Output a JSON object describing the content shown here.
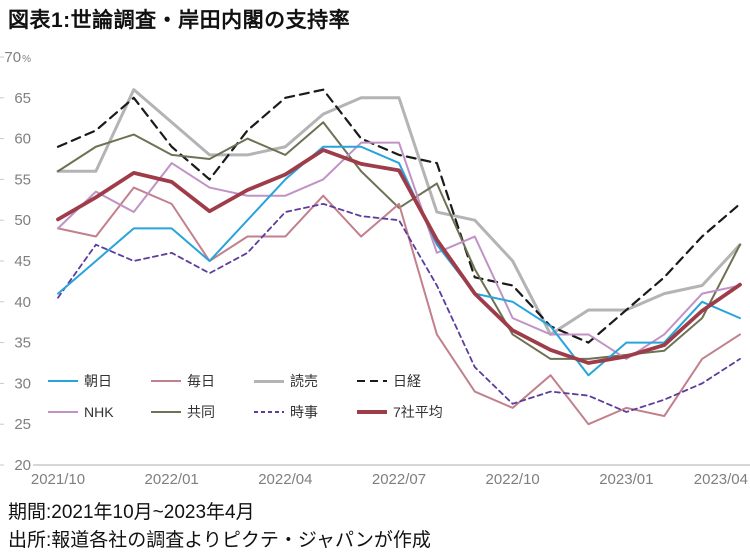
{
  "page": {
    "title": "図表1:世論調査・岸田内閣の支持率",
    "period_note": "期間:2021年10月~2023年4月",
    "source_note": "出所:報道各社の調査よりピクテ・ジャパンが作成"
  },
  "chart_data": {
    "type": "line",
    "title": "図表1:世論調査・岸田内閣の支持率",
    "unit_suffix": "%",
    "ylim": [
      20,
      70
    ],
    "ystep": 5,
    "grid": false,
    "legend_position": "inside-lower-left",
    "x": [
      "2021/10",
      "2021/11",
      "2021/12",
      "2022/01",
      "2022/02",
      "2022/03",
      "2022/04",
      "2022/05",
      "2022/06",
      "2022/07",
      "2022/08",
      "2022/09",
      "2022/10",
      "2022/11",
      "2022/12",
      "2023/01",
      "2023/02",
      "2023/03",
      "2023/04"
    ],
    "x_tick_labels": [
      "2021/10",
      "2022/01",
      "2022/04",
      "2022/07",
      "2022/10",
      "2023/01",
      "2023/04"
    ],
    "x_tick_indices": [
      0,
      3,
      6,
      9,
      12,
      15,
      18
    ],
    "series": [
      {
        "key": "asahi",
        "name": "朝日",
        "color": "#27A4DB",
        "style": "solid",
        "width": 2,
        "values": [
          41,
          45,
          49,
          49,
          45,
          50,
          55,
          59,
          59,
          57,
          47,
          41,
          40,
          37,
          31,
          35,
          35,
          40,
          38
        ]
      },
      {
        "key": "mainichi",
        "name": "毎日",
        "color": "#C2808C",
        "style": "solid",
        "width": 2,
        "values": [
          49,
          48,
          54,
          52,
          45,
          48,
          48,
          53,
          48,
          52,
          36,
          29,
          27,
          31,
          25,
          27,
          26,
          33,
          36
        ]
      },
      {
        "key": "yomiuri",
        "name": "読売",
        "color": "#B5B3B4",
        "style": "solid",
        "width": 3,
        "values": [
          56,
          56,
          66,
          62,
          58,
          58,
          59,
          63,
          65,
          65,
          51,
          50,
          45,
          36,
          39,
          39,
          41,
          42,
          47
        ]
      },
      {
        "key": "nikkei",
        "name": "日経",
        "color": "#1A1A1A",
        "style": "dashed",
        "dash": "9 6",
        "width": 2.2,
        "values": [
          59,
          61,
          65,
          59,
          55,
          61,
          65,
          66,
          60,
          58,
          57,
          43,
          42,
          37,
          35,
          39,
          43,
          48,
          52
        ]
      },
      {
        "key": "nhk",
        "name": "NHK",
        "color": "#C192C5",
        "style": "solid",
        "width": 2,
        "values": [
          49,
          53.5,
          51,
          57,
          54,
          53,
          53,
          55,
          59.5,
          59.5,
          46,
          48,
          38,
          36,
          36,
          33,
          36,
          41,
          42
        ]
      },
      {
        "key": "kyodo",
        "name": "共同",
        "color": "#6E7154",
        "style": "solid",
        "width": 2,
        "values": [
          56,
          59,
          60.5,
          58,
          57.5,
          60,
          58,
          62,
          56,
          51.5,
          54.5,
          44,
          36,
          33,
          33,
          33.5,
          34,
          38,
          47
        ]
      },
      {
        "key": "jiji",
        "name": "時事",
        "color": "#5C3D9C",
        "style": "dashed",
        "dash": "5 4",
        "width": 1.8,
        "values": [
          40.5,
          47,
          45,
          46,
          43.5,
          46,
          51,
          52,
          50.5,
          50,
          42,
          32,
          27.5,
          29,
          28.5,
          26.5,
          28,
          30,
          33
        ]
      },
      {
        "key": "avg",
        "name": "7社平均",
        "color": "#9E3D49",
        "style": "solid",
        "width": 3.8,
        "values": [
          50.1,
          52.8,
          55.8,
          54.7,
          51.1,
          53.7,
          55.6,
          58.6,
          56.9,
          56.1,
          47.6,
          41,
          36.5,
          34.1,
          32.5,
          33.3,
          34.7,
          38.9,
          42.1
        ]
      }
    ]
  }
}
